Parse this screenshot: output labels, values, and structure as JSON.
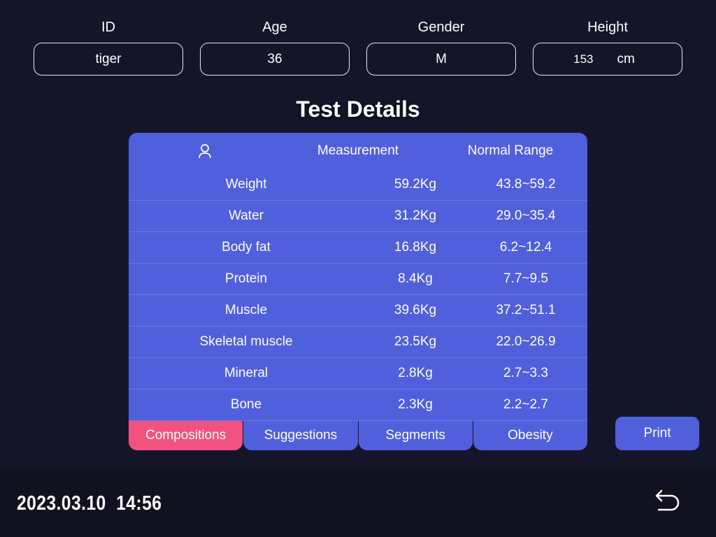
{
  "fields": [
    {
      "label": "ID",
      "value": "tiger"
    },
    {
      "label": "Age",
      "value": "36"
    },
    {
      "label": "Gender",
      "value": "M"
    },
    {
      "label": "Height",
      "value": "153",
      "unit": "cm"
    }
  ],
  "title": "Test Details",
  "table": {
    "headers": {
      "icon": "person-icon",
      "measurement": "Measurement",
      "range": "Normal Range"
    },
    "rows": [
      {
        "name": "Weight",
        "value": "59.2Kg",
        "range": "43.8~59.2"
      },
      {
        "name": "Water",
        "value": "31.2Kg",
        "range": "29.0~35.4"
      },
      {
        "name": "Body fat",
        "value": "16.8Kg",
        "range": "6.2~12.4"
      },
      {
        "name": "Protein",
        "value": "8.4Kg",
        "range": "7.7~9.5"
      },
      {
        "name": "Muscle",
        "value": "39.6Kg",
        "range": "37.2~51.1"
      },
      {
        "name": "Skeletal muscle",
        "value": "23.5Kg",
        "range": "22.0~26.9"
      },
      {
        "name": "Mineral",
        "value": "2.8Kg",
        "range": "2.7~3.3"
      },
      {
        "name": "Bone",
        "value": "2.3Kg",
        "range": "2.2~2.7"
      }
    ]
  },
  "tabs": [
    {
      "label": "Compositions",
      "active": true
    },
    {
      "label": "Suggestions"
    },
    {
      "label": "Segments"
    },
    {
      "label": "Obesity"
    }
  ],
  "print_label": "Print",
  "datetime": "2023.03.10  14:56",
  "colors": {
    "card": "#505fdc",
    "active_tab": "#f2527f",
    "background": "#15152a"
  }
}
